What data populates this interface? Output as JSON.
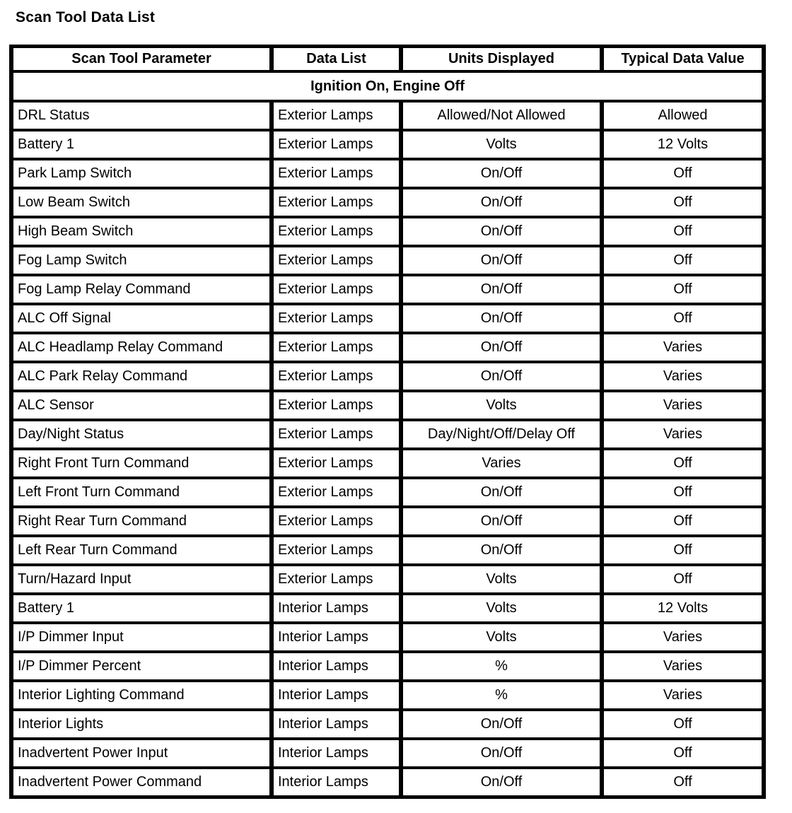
{
  "page_title": "Scan Tool Data List",
  "colors": {
    "background": "#ffffff",
    "text": "#000000",
    "table_border": "#000000"
  },
  "table": {
    "columns": [
      "Scan Tool Parameter",
      "Data List",
      "Units Displayed",
      "Typical Data Value"
    ],
    "section_header": "Ignition On, Engine Off",
    "rows": [
      {
        "parameter": "DRL Status",
        "data_list": "Exterior Lamps",
        "units": "Allowed/Not Allowed",
        "value": "Allowed"
      },
      {
        "parameter": "Battery 1",
        "data_list": "Exterior Lamps",
        "units": "Volts",
        "value": "12 Volts"
      },
      {
        "parameter": "Park Lamp Switch",
        "data_list": "Exterior Lamps",
        "units": "On/Off",
        "value": "Off"
      },
      {
        "parameter": "Low Beam Switch",
        "data_list": "Exterior Lamps",
        "units": "On/Off",
        "value": "Off"
      },
      {
        "parameter": "High Beam Switch",
        "data_list": "Exterior Lamps",
        "units": "On/Off",
        "value": "Off"
      },
      {
        "parameter": "Fog Lamp Switch",
        "data_list": "Exterior Lamps",
        "units": "On/Off",
        "value": "Off"
      },
      {
        "parameter": "Fog Lamp Relay Command",
        "data_list": "Exterior Lamps",
        "units": "On/Off",
        "value": "Off"
      },
      {
        "parameter": "ALC Off Signal",
        "data_list": "Exterior Lamps",
        "units": "On/Off",
        "value": "Off"
      },
      {
        "parameter": "ALC Headlamp Relay Command",
        "data_list": "Exterior Lamps",
        "units": "On/Off",
        "value": "Varies"
      },
      {
        "parameter": "ALC Park Relay Command",
        "data_list": "Exterior Lamps",
        "units": "On/Off",
        "value": "Varies"
      },
      {
        "parameter": "ALC Sensor",
        "data_list": "Exterior Lamps",
        "units": "Volts",
        "value": "Varies"
      },
      {
        "parameter": "Day/Night Status",
        "data_list": "Exterior Lamps",
        "units": "Day/Night/Off/Delay Off",
        "value": "Varies"
      },
      {
        "parameter": "Right Front Turn Command",
        "data_list": "Exterior Lamps",
        "units": "Varies",
        "value": "Off"
      },
      {
        "parameter": "Left Front Turn Command",
        "data_list": "Exterior Lamps",
        "units": "On/Off",
        "value": "Off"
      },
      {
        "parameter": "Right Rear Turn Command",
        "data_list": "Exterior Lamps",
        "units": "On/Off",
        "value": "Off"
      },
      {
        "parameter": "Left Rear Turn Command",
        "data_list": "Exterior Lamps",
        "units": "On/Off",
        "value": "Off"
      },
      {
        "parameter": "Turn/Hazard Input",
        "data_list": "Exterior Lamps",
        "units": "Volts",
        "value": "Off"
      },
      {
        "parameter": "Battery 1",
        "data_list": "Interior Lamps",
        "units": "Volts",
        "value": "12 Volts"
      },
      {
        "parameter": "I/P Dimmer Input",
        "data_list": "Interior Lamps",
        "units": "Volts",
        "value": "Varies"
      },
      {
        "parameter": "I/P Dimmer Percent",
        "data_list": "Interior Lamps",
        "units": "%",
        "value": "Varies"
      },
      {
        "parameter": "Interior Lighting Command",
        "data_list": "Interior Lamps",
        "units": "%",
        "value": "Varies"
      },
      {
        "parameter": "Interior Lights",
        "data_list": "Interior Lamps",
        "units": "On/Off",
        "value": "Off"
      },
      {
        "parameter": "Inadvertent Power Input",
        "data_list": "Interior Lamps",
        "units": "On/Off",
        "value": "Off"
      },
      {
        "parameter": "Inadvertent Power Command",
        "data_list": "Interior Lamps",
        "units": "On/Off",
        "value": "Off"
      }
    ]
  }
}
